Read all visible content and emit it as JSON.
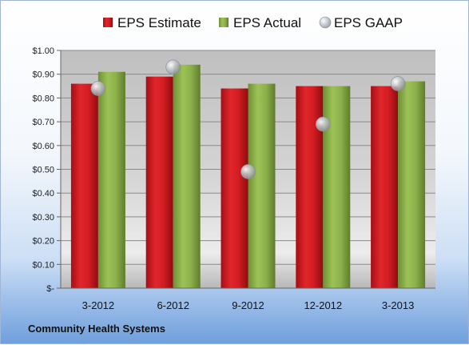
{
  "chart_data": {
    "type": "bar",
    "title": "",
    "xlabel": "",
    "ylabel": "",
    "categories": [
      "3-2012",
      "6-2012",
      "9-2012",
      "12-2012",
      "3-2013"
    ],
    "series": [
      {
        "name": "EPS Estimate",
        "kind": "bar",
        "color": "#cc1a1f",
        "values": [
          0.86,
          0.89,
          0.84,
          0.85,
          0.85
        ]
      },
      {
        "name": "EPS Actual",
        "kind": "bar",
        "color": "#8cb04a",
        "values": [
          0.91,
          0.94,
          0.86,
          0.85,
          0.87
        ]
      },
      {
        "name": "EPS GAAP",
        "kind": "scatter",
        "color": "#b8bcc4",
        "values": [
          0.84,
          0.93,
          0.49,
          0.69,
          0.86
        ]
      }
    ],
    "ylim": [
      0,
      1.0
    ],
    "ytick_values": [
      0,
      0.1,
      0.2,
      0.3,
      0.4,
      0.5,
      0.6,
      0.7,
      0.8,
      0.9,
      1.0
    ],
    "ytick_labels": [
      "$-",
      "$0.10",
      "$0.20",
      "$0.30",
      "$0.40",
      "$0.50",
      "$0.60",
      "$0.70",
      "$0.80",
      "$0.90",
      "$1.00"
    ],
    "grid": true,
    "legend_position": "top"
  },
  "footer": {
    "company": "Community Health Systems"
  }
}
